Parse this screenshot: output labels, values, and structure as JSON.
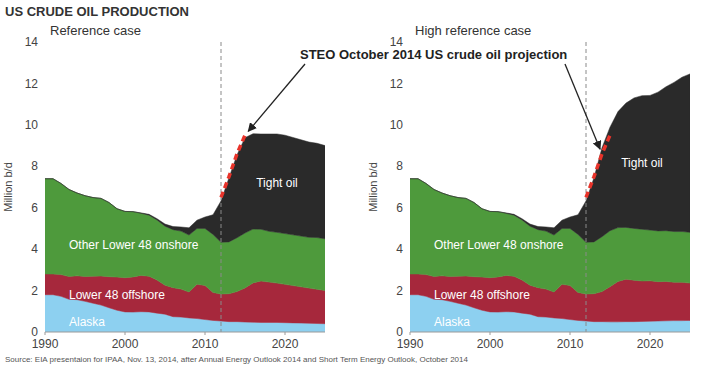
{
  "title": "US CRUDE OIL PRODUCTION",
  "annotation": "STEO October 2014 US crude oil projection",
  "source": "Source: EIA presentaion for IPAA, Nov. 13, 2014, after Annual Energy Outlook 2014 and Short Term Energy Outlook, October 2014",
  "chart_data": [
    {
      "type": "area",
      "title": "Reference case",
      "y_label": "Million b/d",
      "stacked": true,
      "grid": false,
      "x": [
        1990,
        1991,
        1992,
        1993,
        1994,
        1995,
        1996,
        1997,
        1998,
        1999,
        2000,
        2001,
        2002,
        2003,
        2004,
        2005,
        2006,
        2007,
        2008,
        2009,
        2010,
        2011,
        2012,
        2013,
        2014,
        2015,
        2016,
        2017,
        2018,
        2019,
        2020,
        2021,
        2022,
        2023,
        2024,
        2025
      ],
      "xlim": [
        1990,
        2025
      ],
      "xticks": [
        1990,
        2000,
        2010,
        2020
      ],
      "ylim": [
        0,
        14
      ],
      "yticks": [
        0,
        2,
        4,
        6,
        8,
        10,
        12,
        14
      ],
      "reference_line": 2012,
      "series": [
        {
          "name": "Alaska",
          "color": "#8dd0f0",
          "values": [
            1.8,
            1.8,
            1.72,
            1.58,
            1.56,
            1.48,
            1.39,
            1.3,
            1.17,
            1.05,
            0.97,
            0.96,
            0.98,
            0.97,
            0.91,
            0.86,
            0.74,
            0.72,
            0.68,
            0.65,
            0.6,
            0.56,
            0.53,
            0.5,
            0.5,
            0.48,
            0.47,
            0.46,
            0.46,
            0.46,
            0.45,
            0.44,
            0.43,
            0.42,
            0.41,
            0.4
          ]
        },
        {
          "name": "Lower 48 offshore",
          "color": "#a6283c",
          "values": [
            1.0,
            1.0,
            1.05,
            1.1,
            1.15,
            1.2,
            1.3,
            1.4,
            1.5,
            1.6,
            1.65,
            1.7,
            1.75,
            1.72,
            1.6,
            1.4,
            1.4,
            1.35,
            1.25,
            1.65,
            1.65,
            1.35,
            1.3,
            1.35,
            1.45,
            1.65,
            1.9,
            2.0,
            1.95,
            1.9,
            1.85,
            1.8,
            1.75,
            1.7,
            1.65,
            1.6
          ]
        },
        {
          "name": "Other Lower 48 onshore",
          "color": "#4e9a3c",
          "values": [
            4.6,
            4.6,
            4.4,
            4.2,
            4.0,
            3.9,
            3.8,
            3.75,
            3.58,
            3.3,
            3.2,
            3.15,
            3.0,
            2.95,
            2.9,
            2.85,
            2.8,
            2.8,
            2.75,
            2.7,
            2.75,
            2.8,
            2.5,
            2.5,
            2.6,
            2.65,
            2.6,
            2.5,
            2.45,
            2.45,
            2.45,
            2.45,
            2.45,
            2.45,
            2.5,
            2.5
          ]
        },
        {
          "name": "Tight oil",
          "color": "#2a2a2a",
          "values": [
            0,
            0,
            0,
            0,
            0,
            0,
            0,
            0,
            0,
            0,
            0,
            0,
            0.02,
            0.04,
            0.06,
            0.1,
            0.15,
            0.2,
            0.35,
            0.4,
            0.55,
            0.95,
            2.0,
            3.1,
            4.0,
            4.6,
            4.6,
            4.6,
            4.7,
            4.75,
            4.75,
            4.7,
            4.65,
            4.6,
            4.55,
            4.5
          ]
        }
      ],
      "projection": {
        "x": [
          2012,
          2013,
          2014,
          2015
        ],
        "values": [
          6.5,
          7.5,
          8.6,
          9.5
        ],
        "color": "#e8332a",
        "line_style": "dashed"
      }
    },
    {
      "type": "area",
      "title": "High reference case",
      "y_label": "Million b/d",
      "stacked": true,
      "grid": false,
      "x": [
        1990,
        1991,
        1992,
        1993,
        1994,
        1995,
        1996,
        1997,
        1998,
        1999,
        2000,
        2001,
        2002,
        2003,
        2004,
        2005,
        2006,
        2007,
        2008,
        2009,
        2010,
        2011,
        2012,
        2013,
        2014,
        2015,
        2016,
        2017,
        2018,
        2019,
        2020,
        2021,
        2022,
        2023,
        2024,
        2025
      ],
      "xlim": [
        1990,
        2025
      ],
      "xticks": [
        1990,
        2000,
        2010,
        2020
      ],
      "ylim": [
        0,
        14
      ],
      "yticks": [
        0,
        2,
        4,
        6,
        8,
        10,
        12,
        14
      ],
      "reference_line": 2012,
      "series": [
        {
          "name": "Alaska",
          "color": "#8dd0f0",
          "values": [
            1.8,
            1.8,
            1.72,
            1.58,
            1.56,
            1.48,
            1.39,
            1.3,
            1.17,
            1.05,
            0.97,
            0.96,
            0.98,
            0.97,
            0.91,
            0.86,
            0.74,
            0.72,
            0.68,
            0.65,
            0.6,
            0.56,
            0.53,
            0.5,
            0.5,
            0.49,
            0.49,
            0.5,
            0.5,
            0.51,
            0.52,
            0.53,
            0.54,
            0.55,
            0.55,
            0.56
          ]
        },
        {
          "name": "Lower 48 offshore",
          "color": "#a6283c",
          "values": [
            1.0,
            1.0,
            1.05,
            1.1,
            1.15,
            1.2,
            1.3,
            1.4,
            1.5,
            1.6,
            1.65,
            1.7,
            1.75,
            1.72,
            1.6,
            1.4,
            1.4,
            1.35,
            1.25,
            1.65,
            1.65,
            1.35,
            1.3,
            1.35,
            1.45,
            1.7,
            1.95,
            2.05,
            2.0,
            1.95,
            1.95,
            1.9,
            1.9,
            1.85,
            1.85,
            1.8
          ]
        },
        {
          "name": "Other Lower 48 onshore",
          "color": "#4e9a3c",
          "values": [
            4.6,
            4.6,
            4.4,
            4.2,
            4.0,
            3.9,
            3.8,
            3.75,
            3.58,
            3.3,
            3.2,
            3.15,
            3.0,
            2.95,
            2.9,
            2.85,
            2.8,
            2.8,
            2.75,
            2.7,
            2.75,
            2.8,
            2.5,
            2.5,
            2.65,
            2.7,
            2.6,
            2.5,
            2.5,
            2.5,
            2.45,
            2.45,
            2.45,
            2.45,
            2.45,
            2.45
          ]
        },
        {
          "name": "Tight oil",
          "color": "#2a2a2a",
          "values": [
            0,
            0,
            0,
            0,
            0,
            0,
            0,
            0,
            0,
            0,
            0,
            0,
            0.02,
            0.04,
            0.06,
            0.1,
            0.15,
            0.2,
            0.35,
            0.4,
            0.55,
            0.95,
            2.0,
            3.1,
            4.3,
            5.0,
            5.6,
            6.0,
            6.3,
            6.45,
            6.5,
            6.7,
            6.95,
            7.2,
            7.45,
            7.65
          ]
        }
      ],
      "projection": {
        "x": [
          2012,
          2013,
          2014,
          2015
        ],
        "values": [
          6.5,
          7.5,
          8.6,
          9.5
        ],
        "color": "#e8332a",
        "line_style": "dashed"
      }
    }
  ]
}
